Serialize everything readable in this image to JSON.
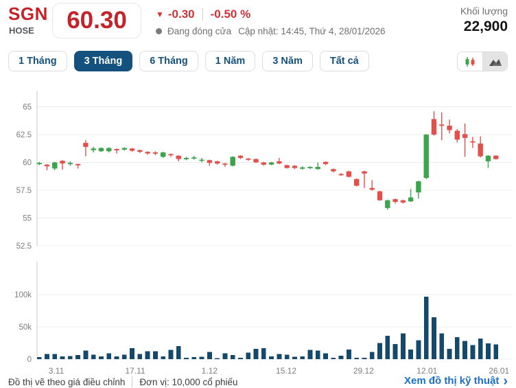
{
  "header": {
    "symbol": "SGN",
    "exchange": "HOSE",
    "price": "60.30",
    "change": "-0.30",
    "change_percent": "-0.50 %",
    "status_text": "Đang đóng cửa",
    "updated_text": "Cập nhật: 14:45, Thứ 4, 28/01/2026",
    "volume_label": "Khối lượng",
    "volume_value": "22,900"
  },
  "icons": {
    "triangle_down": "▼",
    "chevron_right": "›"
  },
  "tabs": {
    "items": [
      {
        "label": "1 Tháng",
        "active": false
      },
      {
        "label": "3 Tháng",
        "active": true
      },
      {
        "label": "6 Tháng",
        "active": false
      },
      {
        "label": "1 Năm",
        "active": false
      },
      {
        "label": "3 Năm",
        "active": false
      },
      {
        "label": "Tất cả",
        "active": false
      }
    ]
  },
  "chart_toggle": {
    "options": [
      "candlestick",
      "area"
    ],
    "selected": "candlestick"
  },
  "footer": {
    "note_adjusted": "Đồ thị vẽ theo giá điều chỉnh",
    "note_unit": "Đơn vị: 10,000 cổ phiếu",
    "link_label": "Xem đồ thị kỹ thuật"
  },
  "colors": {
    "up_green": "#3ca44c",
    "down_red": "#e2504c",
    "price_red": "#c3242a",
    "change_red": "#ce3138",
    "navy": "#15517e",
    "volume_bar": "#15496b",
    "link_blue": "#1b6fc8",
    "grid": "#ececec",
    "axis_line": "#c9c9c9",
    "axis_text": "#7d7d7d"
  },
  "chart_data": {
    "type": "candlestick+volume",
    "title": "SGN 3-month price chart",
    "price_axis": {
      "ticks": [
        65,
        62.5,
        60,
        57.5,
        55,
        52.5
      ],
      "ylim": [
        52.5,
        66.4
      ]
    },
    "volume_axis": {
      "ticks": [
        {
          "label": "100k",
          "value": 100000
        },
        {
          "label": "50k",
          "value": 50000
        },
        {
          "label": "0",
          "value": 0
        }
      ],
      "ylim": [
        0,
        150000
      ]
    },
    "x_labels": [
      {
        "label": "3.11",
        "index": 2.2
      },
      {
        "label": "17.11",
        "index": 12.4
      },
      {
        "label": "1.12",
        "index": 22.0
      },
      {
        "label": "15.12",
        "index": 31.9
      },
      {
        "label": "29.12",
        "index": 41.9
      },
      {
        "label": "12.01",
        "index": 50.1
      },
      {
        "label": "26.01",
        "index": 59.4
      }
    ],
    "candles_ohlc": [
      [
        59.85,
        60.05,
        59.75,
        59.95
      ],
      [
        59.8,
        59.85,
        59.3,
        59.65
      ],
      [
        59.45,
        60.05,
        59.3,
        60.0
      ],
      [
        60.15,
        60.2,
        59.35,
        59.9
      ],
      [
        59.9,
        60.1,
        59.7,
        59.95
      ],
      [
        59.85,
        59.9,
        59.45,
        59.8
      ],
      [
        61.75,
        62.0,
        60.55,
        61.4
      ],
      [
        61.1,
        61.4,
        60.9,
        61.25
      ],
      [
        61.0,
        61.35,
        60.95,
        61.3
      ],
      [
        61.0,
        61.35,
        60.9,
        61.3
      ],
      [
        61.2,
        61.25,
        60.8,
        61.1
      ],
      [
        61.15,
        61.35,
        61.05,
        61.3
      ],
      [
        61.25,
        61.3,
        60.95,
        61.05
      ],
      [
        61.1,
        61.15,
        60.85,
        60.95
      ],
      [
        60.95,
        61.0,
        60.7,
        60.8
      ],
      [
        60.9,
        61.0,
        60.65,
        60.8
      ],
      [
        60.5,
        60.95,
        60.4,
        60.9
      ],
      [
        60.75,
        60.8,
        60.5,
        60.65
      ],
      [
        60.6,
        60.65,
        60.1,
        60.3
      ],
      [
        60.3,
        60.5,
        60.2,
        60.4
      ],
      [
        60.35,
        60.6,
        60.25,
        60.45
      ],
      [
        60.2,
        60.4,
        60.0,
        60.25
      ],
      [
        60.2,
        60.25,
        59.7,
        59.95
      ],
      [
        60.1,
        60.15,
        59.8,
        59.9
      ],
      [
        59.9,
        59.95,
        59.6,
        59.85
      ],
      [
        59.7,
        60.55,
        59.65,
        60.5
      ],
      [
        60.6,
        60.65,
        60.3,
        60.4
      ],
      [
        60.35,
        60.4,
        60.15,
        60.25
      ],
      [
        60.3,
        60.35,
        59.95,
        60.0
      ],
      [
        60.0,
        60.05,
        59.7,
        59.8
      ],
      [
        59.8,
        60.05,
        59.75,
        60.0
      ],
      [
        60.1,
        60.4,
        59.85,
        59.9
      ],
      [
        59.75,
        59.8,
        59.45,
        59.5
      ],
      [
        59.7,
        59.75,
        59.4,
        59.5
      ],
      [
        59.5,
        59.65,
        59.35,
        59.55
      ],
      [
        59.5,
        59.65,
        59.4,
        59.6
      ],
      [
        59.4,
        60.0,
        59.35,
        59.6
      ],
      [
        60.05,
        60.1,
        59.75,
        59.85
      ],
      [
        59.4,
        59.45,
        59.1,
        59.2
      ],
      [
        58.95,
        59.05,
        58.8,
        58.85
      ],
      [
        59.2,
        59.25,
        58.65,
        58.7
      ],
      [
        58.5,
        58.55,
        57.85,
        57.9
      ],
      [
        59.2,
        59.25,
        57.7,
        59.0
      ],
      [
        57.7,
        58.4,
        57.45,
        57.55
      ],
      [
        57.4,
        57.45,
        56.55,
        56.6
      ],
      [
        55.9,
        56.65,
        55.75,
        56.6
      ],
      [
        56.7,
        56.75,
        56.3,
        56.45
      ],
      [
        56.6,
        56.65,
        56.3,
        56.4
      ],
      [
        56.5,
        57.6,
        56.45,
        56.85
      ],
      [
        57.3,
        58.35,
        56.75,
        58.3
      ],
      [
        58.6,
        62.55,
        58.5,
        62.5
      ],
      [
        63.9,
        64.6,
        62.4,
        62.5
      ],
      [
        63.4,
        64.5,
        62.0,
        63.3
      ],
      [
        63.3,
        63.85,
        62.6,
        62.9
      ],
      [
        62.85,
        63.0,
        61.8,
        62.05
      ],
      [
        62.55,
        63.5,
        60.5,
        62.2
      ],
      [
        61.9,
        62.3,
        61.3,
        61.8
      ],
      [
        61.7,
        62.35,
        60.45,
        60.55
      ],
      [
        60.1,
        60.65,
        59.5,
        60.6
      ],
      [
        60.6,
        60.65,
        60.25,
        60.3
      ]
    ],
    "volumes": [
      3000,
      8000,
      8000,
      4000,
      5000,
      6500,
      13500,
      7000,
      4500,
      9000,
      4000,
      7000,
      17000,
      8000,
      12500,
      12000,
      4500,
      14500,
      20000,
      2000,
      3000,
      3500,
      11000,
      1500,
      9000,
      6500,
      2000,
      10000,
      16000,
      17000,
      4500,
      8000,
      7000,
      3500,
      4500,
      14500,
      13500,
      9000,
      2000,
      5500,
      15000,
      2000,
      2000,
      11000,
      25000,
      36000,
      23500,
      40000,
      15000,
      29000,
      97000,
      65000,
      40000,
      16000,
      34000,
      28000,
      22000,
      32000,
      24500,
      22900
    ]
  }
}
